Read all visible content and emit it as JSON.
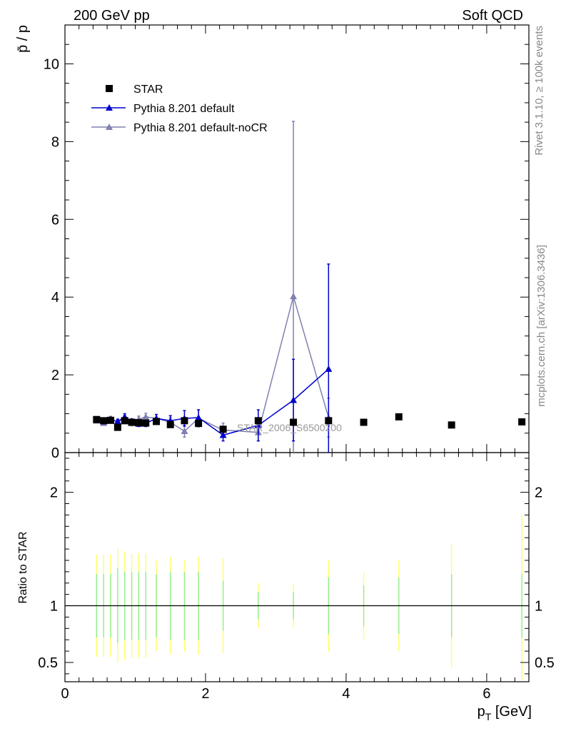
{
  "header": {
    "left": "200 GeV pp",
    "right": "Soft QCD"
  },
  "side_labels": {
    "rivet": "Rivet 3.1.10, ≥ 100k events",
    "mcplots": "mcplots.cern.ch [arXiv:1306.3436]"
  },
  "colors": {
    "star": "#000000",
    "default": "#0000cc",
    "nocr": "#8080b0",
    "band_inner": "#90ee90",
    "band_outer": "#ffff66"
  },
  "chart_data": [
    {
      "type": "scatter",
      "panel": "main",
      "ylabel": "p̄ / p",
      "xlim": [
        0,
        6.6
      ],
      "ylim": [
        0,
        11
      ],
      "yticks": [
        0,
        2,
        4,
        6,
        8,
        10
      ],
      "watermark": "STAR_2006_S6500200",
      "legend": {
        "placement": "top-left",
        "entries": [
          "STAR",
          "Pythia 8.201 default",
          "Pythia 8.201 default-noCR"
        ]
      },
      "series": [
        {
          "name": "STAR",
          "marker": "square",
          "x": [
            0.45,
            0.55,
            0.65,
            0.75,
            0.85,
            0.95,
            1.05,
            1.15,
            1.3,
            1.5,
            1.7,
            1.9,
            2.25,
            2.75,
            3.25,
            3.75,
            4.25,
            4.75,
            5.5,
            6.5
          ],
          "y": [
            0.85,
            0.82,
            0.83,
            0.65,
            0.82,
            0.78,
            0.77,
            0.76,
            0.8,
            0.72,
            0.82,
            0.75,
            0.6,
            0.82,
            0.78,
            0.82,
            0.78,
            0.92,
            0.71,
            0.79
          ]
        },
        {
          "name": "Pythia 8.201 default",
          "marker": "triangle",
          "x": [
            0.45,
            0.55,
            0.65,
            0.75,
            0.85,
            0.95,
            1.05,
            1.15,
            1.3,
            1.5,
            1.7,
            1.9,
            2.25,
            2.75,
            3.25,
            3.75
          ],
          "y": [
            0.84,
            0.8,
            0.85,
            0.8,
            0.92,
            0.8,
            0.74,
            0.75,
            0.88,
            0.82,
            0.88,
            0.9,
            0.45,
            0.7,
            1.35,
            2.15
          ],
          "yerr": [
            0.05,
            0.05,
            0.06,
            0.06,
            0.08,
            0.07,
            0.07,
            0.08,
            0.1,
            0.13,
            0.2,
            0.2,
            0.15,
            0.4,
            1.05,
            2.7
          ]
        },
        {
          "name": "Pythia 8.201 default-noCR",
          "marker": "triangle",
          "x": [
            0.45,
            0.55,
            0.65,
            0.75,
            0.85,
            0.95,
            1.05,
            1.15,
            1.3,
            1.5,
            1.7,
            1.9,
            2.25,
            2.75,
            3.25,
            3.75
          ],
          "y": [
            0.82,
            0.76,
            0.87,
            0.78,
            0.88,
            0.76,
            0.86,
            0.92,
            0.88,
            0.78,
            0.55,
            0.88,
            0.58,
            0.52,
            4.02,
            0.9
          ],
          "yerr": [
            0.05,
            0.05,
            0.06,
            0.06,
            0.08,
            0.07,
            0.08,
            0.09,
            0.1,
            0.12,
            0.15,
            0.22,
            0.18,
            0.22,
            4.5,
            0.5
          ]
        }
      ]
    },
    {
      "type": "scatter",
      "panel": "ratio",
      "xlabel": "p_T [GeV]",
      "ylabel": "Ratio to STAR",
      "xlim": [
        0,
        6.6
      ],
      "ylim": [
        0.33,
        2.35
      ],
      "yticks": [
        0.5,
        1,
        2
      ],
      "xticks": [
        0,
        2,
        4,
        6
      ],
      "reference": 1,
      "bands": {
        "x": [
          0.45,
          0.55,
          0.65,
          0.75,
          0.85,
          0.95,
          1.05,
          1.15,
          1.3,
          1.5,
          1.7,
          1.9,
          2.25,
          2.75,
          3.25,
          3.75,
          4.25,
          4.75,
          5.5,
          6.5
        ],
        "stat": [
          0.28,
          0.28,
          0.28,
          0.33,
          0.3,
          0.3,
          0.3,
          0.3,
          0.28,
          0.3,
          0.3,
          0.3,
          0.22,
          0.12,
          0.12,
          0.25,
          0.18,
          0.25,
          0.28,
          0.28
        ],
        "total": [
          0.45,
          0.45,
          0.45,
          0.5,
          0.48,
          0.46,
          0.46,
          0.46,
          0.4,
          0.43,
          0.4,
          0.43,
          0.42,
          0.2,
          0.2,
          0.4,
          0.3,
          0.4,
          0.55,
          0.8
        ]
      }
    }
  ]
}
